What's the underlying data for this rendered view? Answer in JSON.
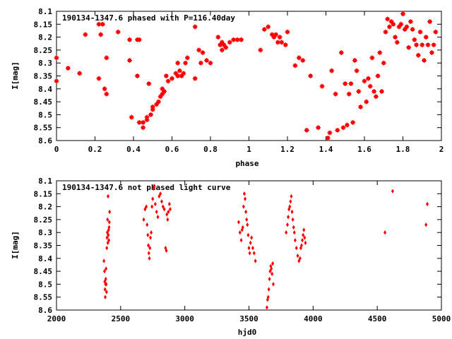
{
  "chart_data": [
    {
      "type": "scatter",
      "title": "190134-1347.6 phased with P=116.40day",
      "xlabel": "phase",
      "ylabel": "I[mag]",
      "xlim": [
        0,
        2
      ],
      "ylim": [
        8.1,
        8.6
      ],
      "y_inverted": true,
      "grid": false,
      "marker_color": "#ff0000",
      "xticks": [
        "0",
        "0.2",
        "0.4",
        "0.6",
        "0.8",
        "1",
        "1.2",
        "1.4",
        "1.6",
        "1.8",
        "2"
      ],
      "yticks": [
        "8.1",
        "8.15",
        "8.2",
        "8.25",
        "8.3",
        "8.35",
        "8.4",
        "8.45",
        "8.5",
        "8.55",
        "8.6"
      ],
      "x": [
        0.0,
        0.0,
        0.06,
        0.12,
        0.15,
        0.22,
        0.22,
        0.23,
        0.24,
        0.25,
        0.26,
        0.26,
        0.32,
        0.38,
        0.38,
        0.39,
        0.42,
        0.42,
        0.43,
        0.43,
        0.45,
        0.45,
        0.47,
        0.47,
        0.48,
        0.49,
        0.5,
        0.5,
        0.52,
        0.53,
        0.54,
        0.55,
        0.55,
        0.56,
        0.57,
        0.58,
        0.6,
        0.62,
        0.63,
        0.63,
        0.64,
        0.65,
        0.66,
        0.67,
        0.68,
        0.72,
        0.72,
        0.74,
        0.75,
        0.76,
        0.78,
        0.8,
        0.84,
        0.85,
        0.86,
        0.86,
        0.87,
        0.88,
        0.9,
        0.92,
        0.94,
        0.96,
        1.06,
        1.08,
        1.1,
        1.12,
        1.13,
        1.14,
        1.15,
        1.16,
        1.17,
        1.19,
        1.2,
        1.24,
        1.26,
        1.28,
        1.3,
        1.32,
        1.36,
        1.38,
        1.41,
        1.42,
        1.43,
        1.45,
        1.46,
        1.48,
        1.49,
        1.5,
        1.51,
        1.52,
        1.53,
        1.54,
        1.55,
        1.56,
        1.57,
        1.58,
        1.6,
        1.61,
        1.62,
        1.63,
        1.64,
        1.65,
        1.66,
        1.67,
        1.68,
        1.69,
        1.7,
        1.71,
        1.72,
        1.73,
        1.74,
        1.75,
        1.76,
        1.77,
        1.78,
        1.79,
        1.8,
        1.81,
        1.82,
        1.83,
        1.84,
        1.85,
        1.86,
        1.87,
        1.88,
        1.89,
        1.9,
        1.91,
        1.92,
        1.93,
        1.94,
        1.95,
        1.96,
        1.97
      ],
      "y": [
        8.37,
        8.28,
        8.32,
        8.34,
        8.19,
        8.15,
        8.36,
        8.19,
        8.15,
        8.4,
        8.42,
        8.28,
        8.18,
        8.21,
        8.29,
        8.51,
        8.21,
        8.35,
        8.21,
        8.53,
        8.55,
        8.53,
        8.52,
        8.51,
        8.38,
        8.5,
        8.48,
        8.47,
        8.46,
        8.45,
        8.43,
        8.42,
        8.4,
        8.41,
        8.35,
        8.37,
        8.36,
        8.34,
        8.35,
        8.3,
        8.33,
        8.35,
        8.34,
        8.3,
        8.28,
        8.16,
        8.36,
        8.25,
        8.3,
        8.26,
        8.29,
        8.3,
        8.2,
        8.23,
        8.22,
        8.25,
        8.23,
        8.24,
        8.22,
        8.21,
        8.21,
        8.21,
        8.25,
        8.17,
        8.16,
        8.19,
        8.2,
        8.19,
        8.22,
        8.2,
        8.22,
        8.23,
        8.18,
        8.31,
        8.28,
        8.29,
        8.56,
        8.35,
        8.55,
        8.39,
        8.59,
        8.57,
        8.33,
        8.42,
        8.56,
        8.26,
        8.55,
        8.38,
        8.54,
        8.42,
        8.38,
        8.53,
        8.29,
        8.33,
        8.41,
        8.47,
        8.37,
        8.45,
        8.36,
        8.39,
        8.28,
        8.41,
        8.43,
        8.35,
        8.26,
        8.41,
        8.3,
        8.18,
        8.13,
        8.16,
        8.14,
        8.15,
        8.2,
        8.22,
        8.16,
        8.15,
        8.11,
        8.17,
        8.16,
        8.24,
        8.14,
        8.17,
        8.21,
        8.23,
        8.27,
        8.18,
        8.23,
        8.29,
        8.2,
        8.23,
        8.14,
        8.26,
        8.23,
        8.18
      ],
      "marker": "filled-box-cross"
    },
    {
      "type": "scatter",
      "title": "190134-1347.6 not phased light curve",
      "xlabel": "hjd0",
      "ylabel": "I[mag]",
      "xlim": [
        2000,
        5000
      ],
      "ylim": [
        8.1,
        8.6
      ],
      "y_inverted": true,
      "grid": false,
      "marker_color": "#ff0000",
      "xticks": [
        "2000",
        "2500",
        "3000",
        "3500",
        "4000",
        "4500",
        "5000"
      ],
      "yticks": [
        "8.1",
        "8.15",
        "8.2",
        "8.25",
        "8.3",
        "8.35",
        "8.4",
        "8.45",
        "8.5",
        "8.55",
        "8.6"
      ],
      "x": [
        2370,
        2374,
        2376,
        2378,
        2380,
        2382,
        2384,
        2386,
        2388,
        2390,
        2392,
        2394,
        2396,
        2398,
        2400,
        2402,
        2404,
        2406,
        2408,
        2410,
        2412,
        2414,
        2680,
        2690,
        2700,
        2706,
        2712,
        2716,
        2720,
        2724,
        2728,
        2732,
        2738,
        2744,
        2750,
        2756,
        2762,
        2770,
        2780,
        2790,
        2800,
        2810,
        2820,
        2830,
        2840,
        2850,
        2856,
        2860,
        2866,
        2872,
        2880,
        2886,
        3420,
        3430,
        3440,
        3446,
        3452,
        3458,
        3464,
        3470,
        3476,
        3482,
        3488,
        3494,
        3500,
        3506,
        3512,
        3520,
        3530,
        3540,
        3550,
        3640,
        3645,
        3650,
        3655,
        3660,
        3665,
        3670,
        3675,
        3680,
        3685,
        3690,
        3790,
        3800,
        3806,
        3812,
        3818,
        3824,
        3830,
        3836,
        3842,
        3848,
        3854,
        3860,
        3870,
        3880,
        3890,
        3898,
        3904,
        3910,
        3916,
        3922,
        3928,
        3934,
        3940,
        4560,
        4620,
        4880,
        4890
      ],
      "y": [
        8.41,
        8.45,
        8.49,
        8.52,
        8.55,
        8.5,
        8.48,
        8.44,
        8.5,
        8.53,
        8.36,
        8.32,
        8.3,
        8.25,
        8.34,
        8.16,
        8.31,
        8.29,
        8.33,
        8.28,
        8.26,
        8.22,
        8.25,
        8.21,
        8.2,
        8.27,
        8.31,
        8.35,
        8.38,
        8.4,
        8.36,
        8.32,
        8.3,
        8.2,
        8.17,
        8.13,
        8.12,
        8.19,
        8.22,
        8.24,
        8.16,
        8.15,
        8.18,
        8.2,
        8.21,
        8.36,
        8.37,
        8.23,
        8.25,
        8.22,
        8.19,
        8.21,
        8.26,
        8.3,
        8.33,
        8.29,
        8.28,
        8.2,
        8.15,
        8.17,
        8.22,
        8.25,
        8.27,
        8.31,
        8.36,
        8.38,
        8.34,
        8.32,
        8.36,
        8.38,
        8.41,
        8.59,
        8.56,
        8.55,
        8.52,
        8.48,
        8.45,
        8.43,
        8.44,
        8.46,
        8.42,
        8.5,
        8.3,
        8.27,
        8.24,
        8.21,
        8.2,
        8.18,
        8.16,
        8.22,
        8.25,
        8.28,
        8.3,
        8.33,
        8.36,
        8.39,
        8.41,
        8.4,
        8.36,
        8.35,
        8.33,
        8.31,
        8.29,
        8.32,
        8.34,
        8.3,
        8.14,
        8.27,
        8.19
      ],
      "marker": "diamond"
    }
  ]
}
